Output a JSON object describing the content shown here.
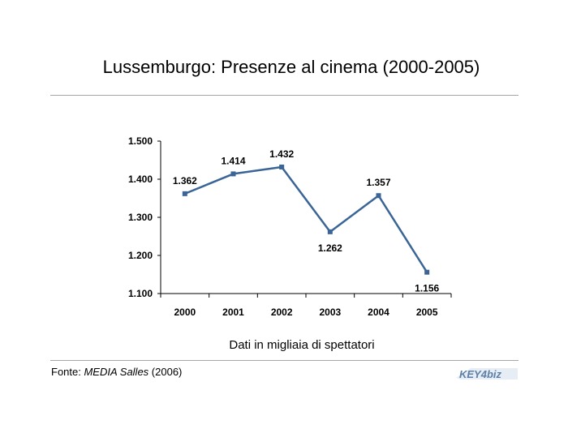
{
  "title": "Lussemburgo: Presenze al cinema (2000-2005)",
  "source": {
    "prefix": "Fonte: ",
    "publication": "MEDIA Salles",
    "suffix": " (2006)"
  },
  "logo": {
    "text": "KEY4biz",
    "color": "#5b7fa6"
  },
  "colors": {
    "line": "#3a6596",
    "marker": "#3a6596",
    "rule": "#a6a6a6"
  },
  "chart_data": {
    "type": "line",
    "title": "Lussemburgo: Presenze al cinema (2000-2005)",
    "xlabel": "Dati in migliaia di spettatori",
    "ylabel": "",
    "categories": [
      "2000",
      "2001",
      "2002",
      "2003",
      "2004",
      "2005"
    ],
    "values": [
      1362,
      1414,
      1432,
      1262,
      1357,
      1156
    ],
    "data_labels": [
      "1.362",
      "1.414",
      "1.432",
      "1.262",
      "1.357",
      "1.156"
    ],
    "ylim": [
      1100,
      1500
    ],
    "yticks": [
      1100,
      1200,
      1300,
      1400,
      1500
    ],
    "ytick_labels": [
      "1.100",
      "1.200",
      "1.300",
      "1.400",
      "1.500"
    ],
    "grid": false,
    "legend": "none"
  }
}
